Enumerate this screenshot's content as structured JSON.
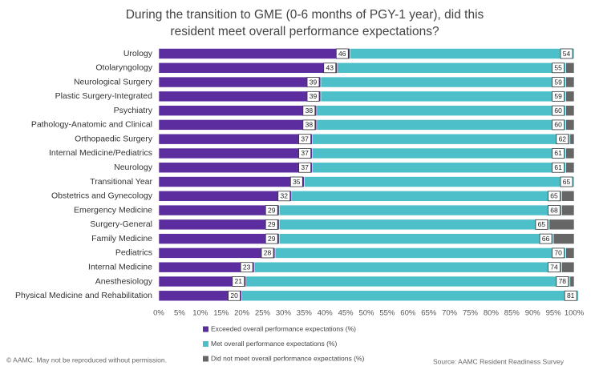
{
  "chart_data": {
    "type": "stacked-barh",
    "title": "During the transition to GME (0-6 months of PGY-1 year), did this resident meet overall performance expectations?",
    "categories": [
      "Urology",
      "Otolaryngology",
      "Neurological Surgery",
      "Plastic Surgery-Integrated",
      "Psychiatry",
      "Pathology-Anatomic and Clinical",
      "Orthopaedic Surgery",
      "Internal Medicine/Pediatrics",
      "Neurology",
      "Transitional Year",
      "Obstetrics and Gynecology",
      "Emergency Medicine",
      "Surgery-General",
      "Family Medicine",
      "Pediatrics",
      "Internal Medicine",
      "Anesthesiology",
      "Physical Medicine and Rehabilitation"
    ],
    "series": [
      {
        "name": "Exceeded overall performance expectations (%)",
        "color": "#5b2d9e",
        "values": [
          46,
          43,
          39,
          39,
          38,
          38,
          37,
          37,
          37,
          35,
          32,
          29,
          29,
          29,
          28,
          23,
          21,
          20
        ]
      },
      {
        "name": "Met overall performance expectations (%)",
        "color": "#4cbfc9",
        "values": [
          54,
          55,
          59,
          59,
          60,
          60,
          62,
          61,
          61,
          65,
          65,
          68,
          65,
          66,
          70,
          74,
          78,
          81
        ]
      },
      {
        "name": "Did not meet overall performance expectations (%)",
        "color": "#666666",
        "values": [
          0,
          2,
          2,
          2,
          2,
          2,
          1,
          2,
          2,
          0,
          3,
          3,
          6,
          5,
          2,
          3,
          1,
          0
        ]
      }
    ],
    "xlim": [
      0,
      100
    ],
    "xticks": [
      {
        "value": 0,
        "label": "0%"
      },
      {
        "value": 5,
        "label": "5%"
      },
      {
        "value": 10,
        "label": "10%"
      },
      {
        "value": 15,
        "label": "15%"
      },
      {
        "value": 20,
        "label": "20%"
      },
      {
        "value": 25,
        "label": "25%"
      },
      {
        "value": 30,
        "label": "30%"
      },
      {
        "value": 35,
        "label": "35%"
      },
      {
        "value": 40,
        "label": "40%"
      },
      {
        "value": 45,
        "label": "45%"
      },
      {
        "value": 50,
        "label": "50%"
      },
      {
        "value": 55,
        "label": "55%"
      },
      {
        "value": 60,
        "label": "60%"
      },
      {
        "value": 65,
        "label": "65%"
      },
      {
        "value": 70,
        "label": "70%"
      },
      {
        "value": 75,
        "label": "75%"
      },
      {
        "value": 80,
        "label": "80%"
      },
      {
        "value": 85,
        "label": "85%"
      },
      {
        "value": 90,
        "label": "90%"
      },
      {
        "value": 95,
        "label": "95%"
      },
      {
        "value": 100,
        "label": "100%"
      }
    ],
    "grid": false,
    "copyright": "© AAMC. May not be reproduced without permission.",
    "source": "Source: AAMC Resident Readiness Survey"
  }
}
